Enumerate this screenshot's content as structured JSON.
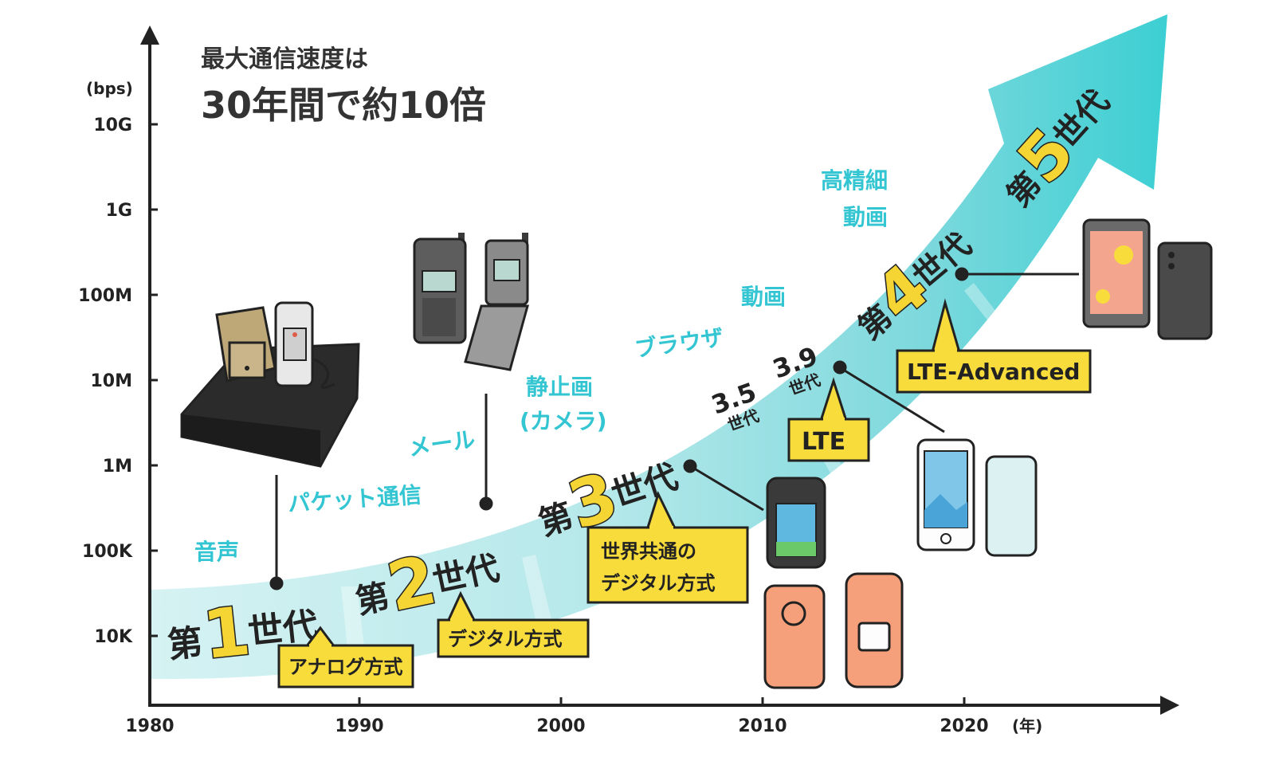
{
  "title": {
    "line1": "最大通信速度は",
    "line2": "30年間で約10倍"
  },
  "y_axis": {
    "unit": "(bps)",
    "ticks": [
      "10G",
      "1G",
      "100M",
      "10M",
      "1M",
      "100K",
      "10K"
    ]
  },
  "x_axis": {
    "unit": "(年)",
    "ticks": [
      "1980",
      "1990",
      "2000",
      "2010",
      "2020"
    ]
  },
  "generations": [
    {
      "prefix": "第",
      "number": "1",
      "suffix": "世代"
    },
    {
      "prefix": "第",
      "number": "2",
      "suffix": "世代"
    },
    {
      "prefix": "第",
      "number": "3",
      "suffix": "世代"
    },
    {
      "prefix": "第",
      "number": "4",
      "suffix": "世代"
    },
    {
      "prefix": "第",
      "number": "5",
      "suffix": "世代"
    }
  ],
  "sub_generations": [
    {
      "number": "3.5",
      "label": "世代"
    },
    {
      "number": "3.9",
      "label": "世代"
    }
  ],
  "features": {
    "voice": "音声",
    "packet": "パケット通信",
    "mail": "メール",
    "still_image": "静止画",
    "camera": "(カメラ)",
    "browser": "ブラウザ",
    "video": "動画",
    "hd_line1": "高精細",
    "hd_line2": "動画"
  },
  "callouts": {
    "analog": "アナログ方式",
    "digital": "デジタル方式",
    "global_line1": "世界共通の",
    "global_line2": "デジタル方式",
    "lte": "LTE",
    "lte_advanced": "LTE-Advanced"
  },
  "colors": {
    "band_light": "#d4f0f2",
    "band_mid": "#a8e2e6",
    "band_dark": "#3ccfd3",
    "callout_yellow": "#f7dc3c",
    "feature_cyan": "#33c6d2",
    "phone_orange": "#f5a07a"
  }
}
